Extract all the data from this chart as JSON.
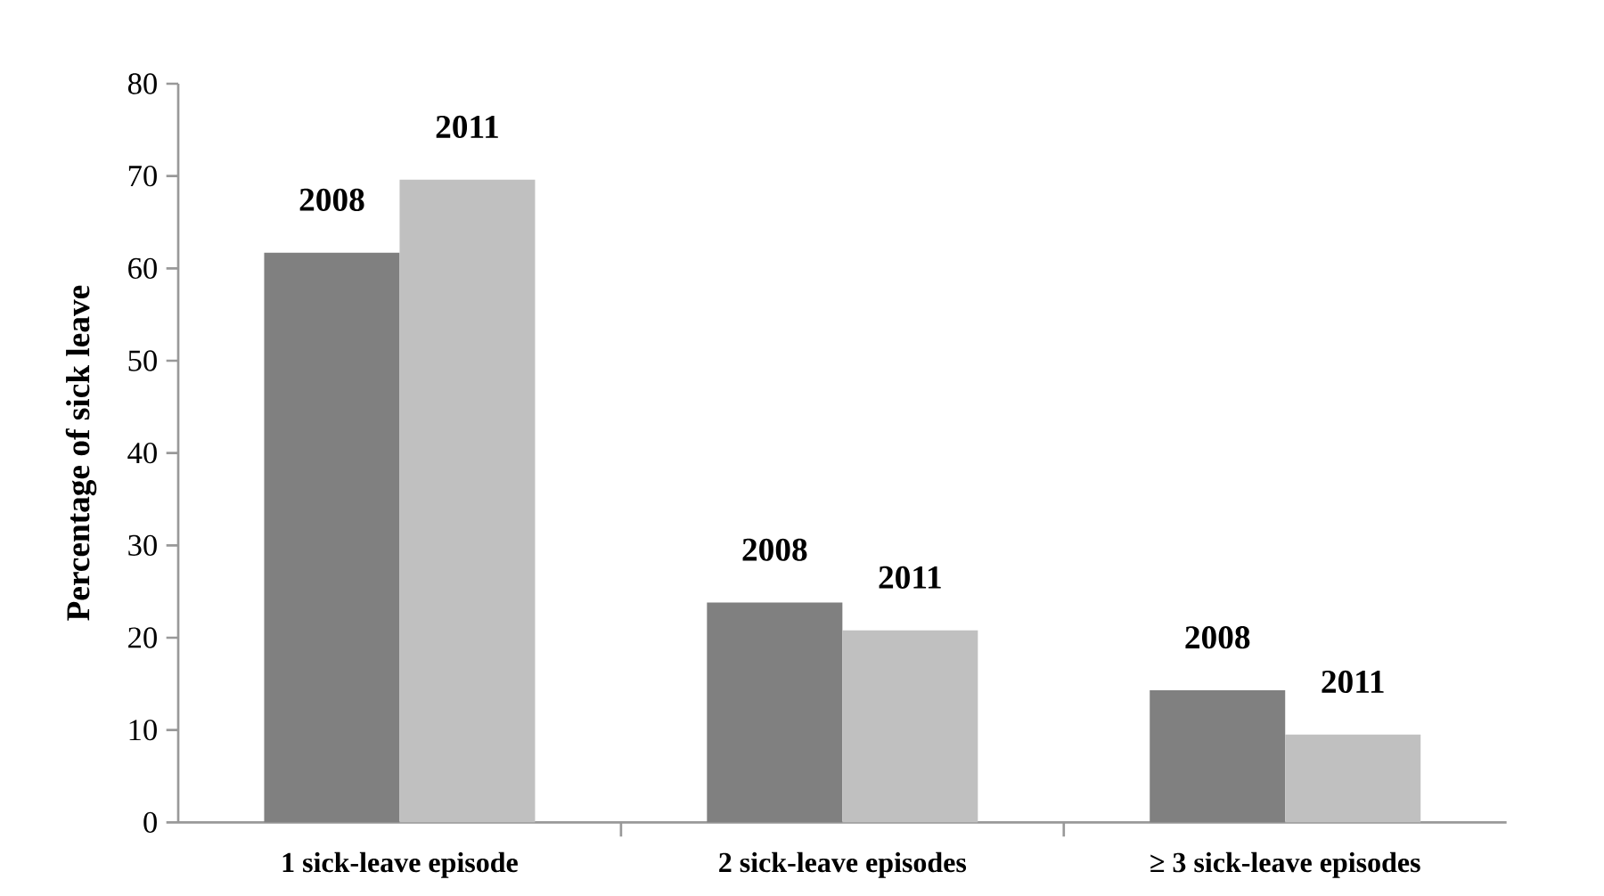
{
  "chart_data": {
    "type": "bar",
    "ylabel": "Percentage of sick leave",
    "categories": [
      "1 sick-leave episode",
      "2 sick-leave episodes",
      "≥ 3 sick-leave episodes"
    ],
    "series": [
      {
        "name": "2008",
        "color": "#808080",
        "values": [
          61.7,
          23.8,
          14.3
        ]
      },
      {
        "name": "2011",
        "color": "#c0c0c0",
        "values": [
          69.6,
          20.8,
          9.5
        ]
      }
    ],
    "ylim": [
      0,
      80
    ],
    "yticks": [
      0,
      10,
      20,
      30,
      40,
      50,
      60,
      70,
      80
    ],
    "grid": false,
    "legend": false
  }
}
